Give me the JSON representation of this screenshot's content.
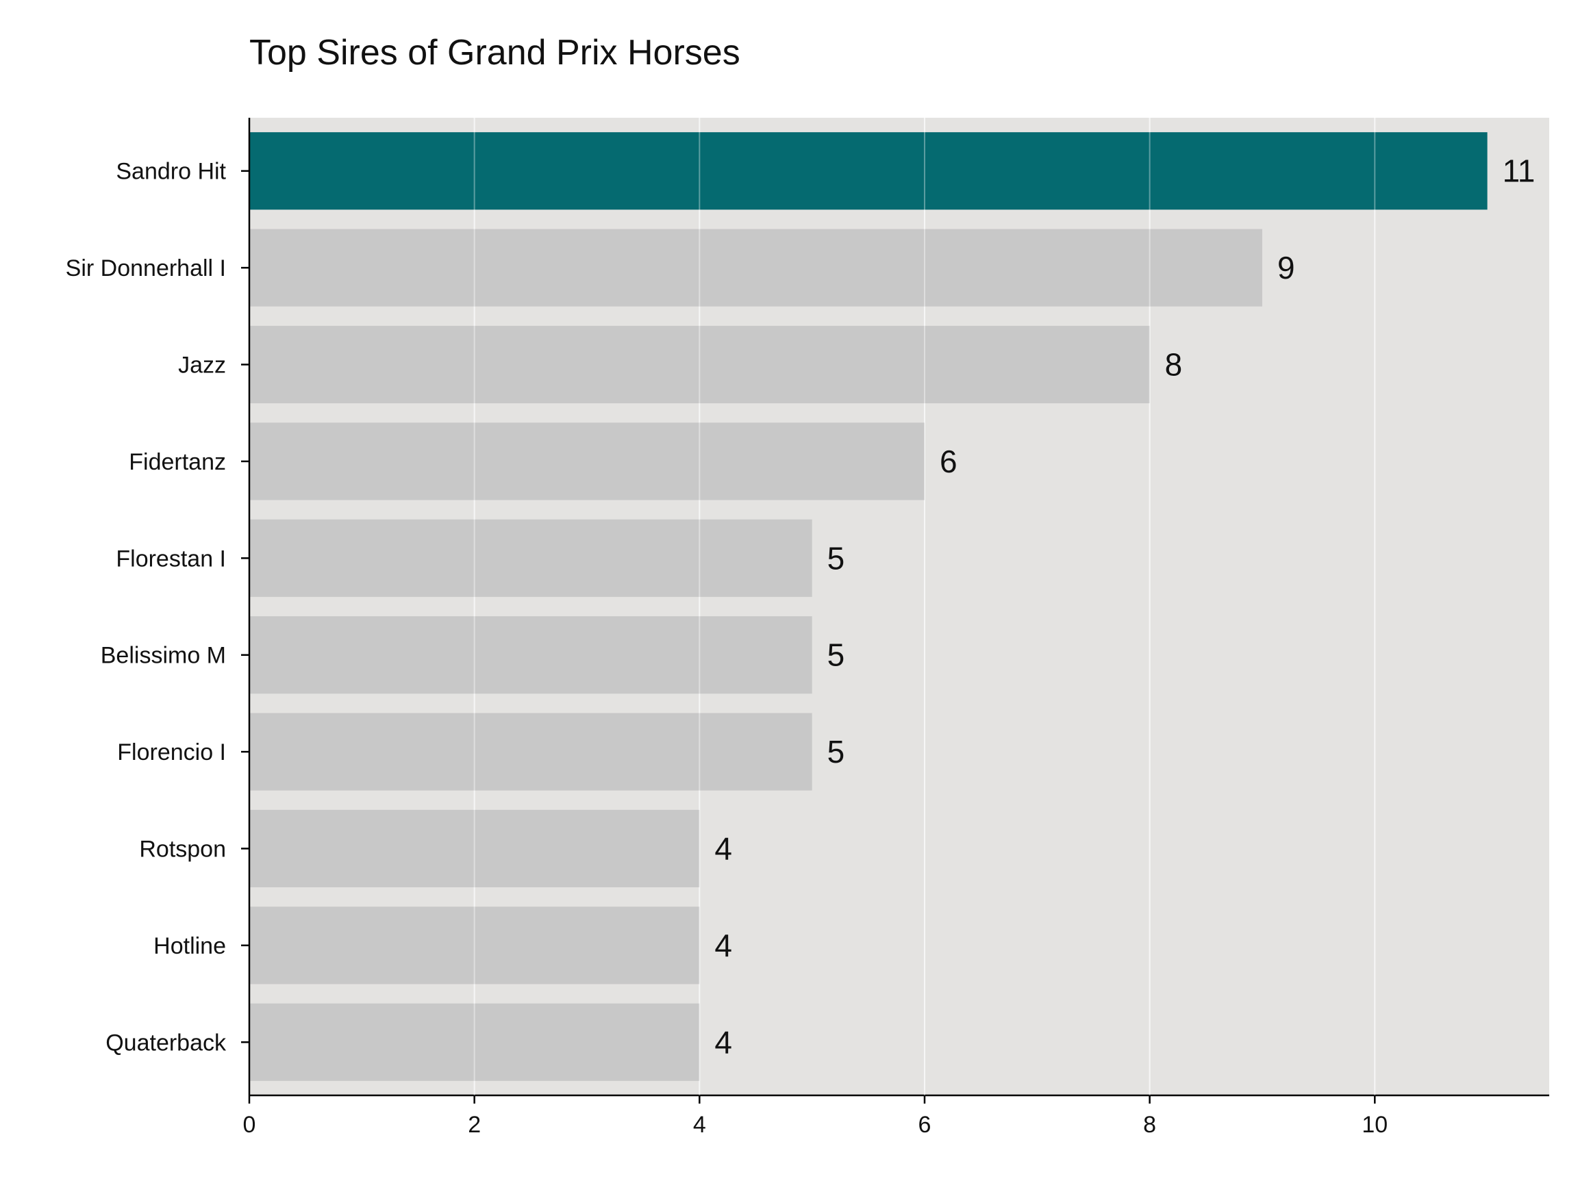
{
  "chart_data": {
    "type": "bar",
    "orientation": "horizontal",
    "title": "Top Sires of Grand Prix Horses",
    "xlabel": "",
    "ylabel": "",
    "categories": [
      "Sandro Hit",
      "Sir Donnerhall I",
      "Jazz",
      "Fidertanz",
      "Florestan I",
      "Belissimo M",
      "Florencio I",
      "Rotspon",
      "Hotline",
      "Quaterback"
    ],
    "values": [
      11,
      9,
      8,
      6,
      5,
      5,
      5,
      4,
      4,
      4
    ],
    "value_labels": [
      "11",
      "9",
      "8",
      "6",
      "5",
      "5",
      "5",
      "4",
      "4",
      "4"
    ],
    "xlim": [
      0,
      11.55
    ],
    "xticks": [
      0,
      2,
      4,
      6,
      8,
      10
    ],
    "xtick_labels": [
      "0",
      "2",
      "4",
      "6",
      "8",
      "10"
    ],
    "grid": true,
    "highlight_index": 0,
    "colors": {
      "highlight": "#056a70",
      "bar": "#bfbfbf",
      "background": "#e4e3e1",
      "grid": "#f2f2f2",
      "axis": "#000000"
    }
  }
}
